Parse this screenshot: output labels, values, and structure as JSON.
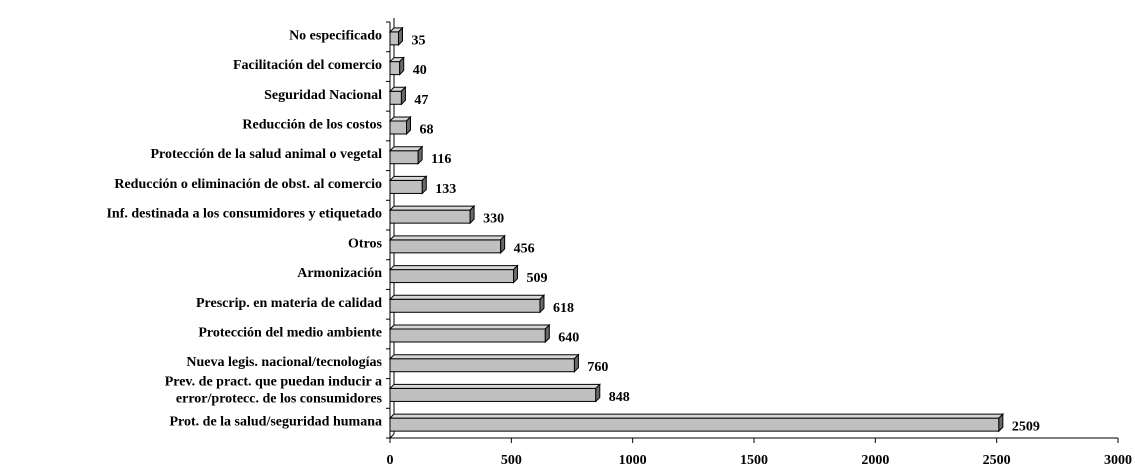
{
  "chart_data": {
    "type": "bar",
    "orientation": "horizontal",
    "bar_style": "3d",
    "bar_color": "#c0c0c0",
    "xlim": [
      0,
      3000
    ],
    "xticks": [
      "0",
      "500",
      "1000",
      "1500",
      "2000",
      "2500",
      "3000"
    ],
    "grid": false,
    "categories": [
      {
        "lines": [
          "Prot. de la salud/seguridad humana"
        ],
        "value": 2509,
        "label": "2509"
      },
      {
        "lines": [
          "Prev. de pract. que puedan inducir a",
          "error/protecc. de los consumidores"
        ],
        "value": 848,
        "label": "848"
      },
      {
        "lines": [
          "Nueva legis. nacional/tecnologías"
        ],
        "value": 760,
        "label": "760"
      },
      {
        "lines": [
          "Protección del medio ambiente"
        ],
        "value": 640,
        "label": "640"
      },
      {
        "lines": [
          "Prescrip. en materia de calidad"
        ],
        "value": 618,
        "label": "618"
      },
      {
        "lines": [
          "Armonización"
        ],
        "value": 509,
        "label": "509"
      },
      {
        "lines": [
          "Otros"
        ],
        "value": 456,
        "label": "456"
      },
      {
        "lines": [
          "Inf. destinada a los consumidores y etiquetado"
        ],
        "value": 330,
        "label": "330"
      },
      {
        "lines": [
          "Reducción o eliminación de obst. al comercio"
        ],
        "value": 133,
        "label": "133"
      },
      {
        "lines": [
          "Protección de la salud animal o vegetal"
        ],
        "value": 116,
        "label": "116"
      },
      {
        "lines": [
          "Reducción de los costos"
        ],
        "value": 68,
        "label": "68"
      },
      {
        "lines": [
          "Seguridad Nacional"
        ],
        "value": 47,
        "label": "47"
      },
      {
        "lines": [
          "Facilitación del comercio"
        ],
        "value": 40,
        "label": "40"
      },
      {
        "lines": [
          "No especificado"
        ],
        "value": 35,
        "label": "35"
      }
    ]
  }
}
